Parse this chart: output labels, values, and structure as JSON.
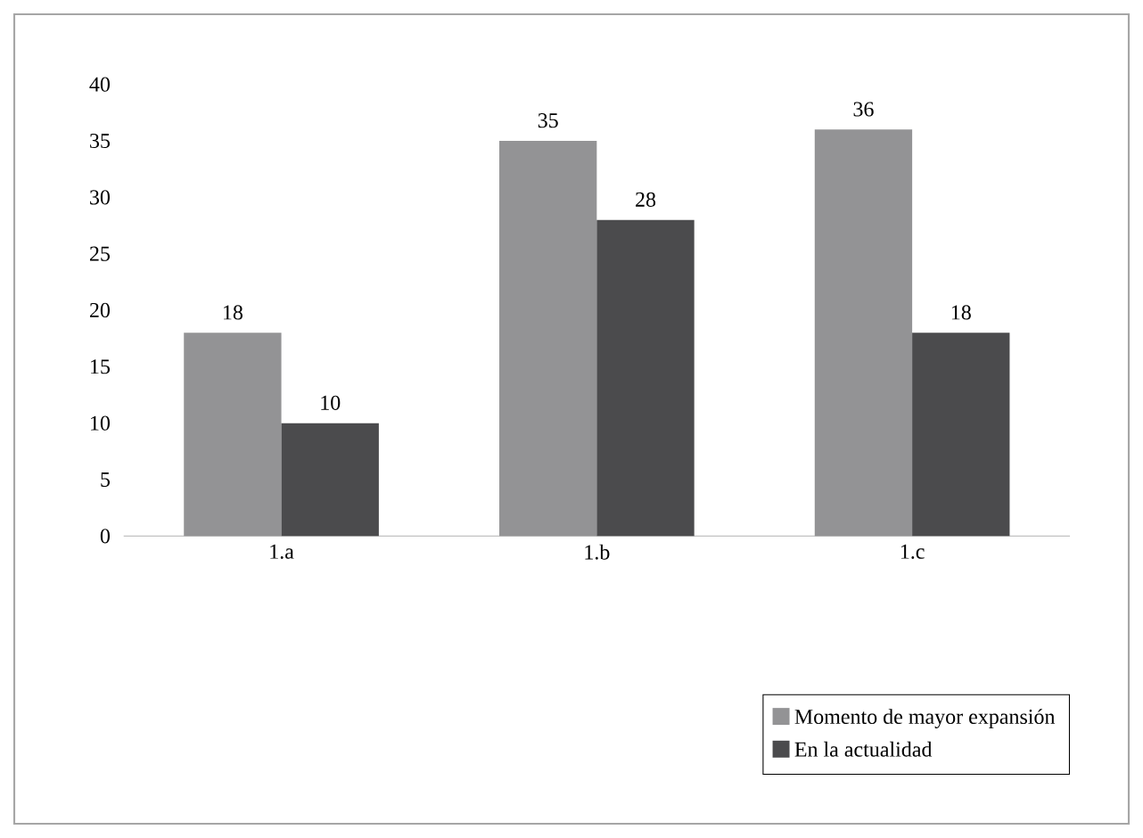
{
  "chart_data": {
    "type": "bar",
    "categories": [
      "1.a",
      "1.b",
      "1.c"
    ],
    "series": [
      {
        "name": "Momento de mayor expansión",
        "color": "#939395",
        "values": [
          18,
          35,
          36
        ]
      },
      {
        "name": "En la actualidad",
        "color": "#4b4b4d",
        "values": [
          10,
          28,
          18
        ]
      }
    ],
    "ylim": [
      0,
      40
    ],
    "yticks": [
      0,
      5,
      10,
      15,
      20,
      25,
      30,
      35,
      40
    ],
    "grid": false,
    "legend": "bottom right",
    "data_labels": true
  }
}
